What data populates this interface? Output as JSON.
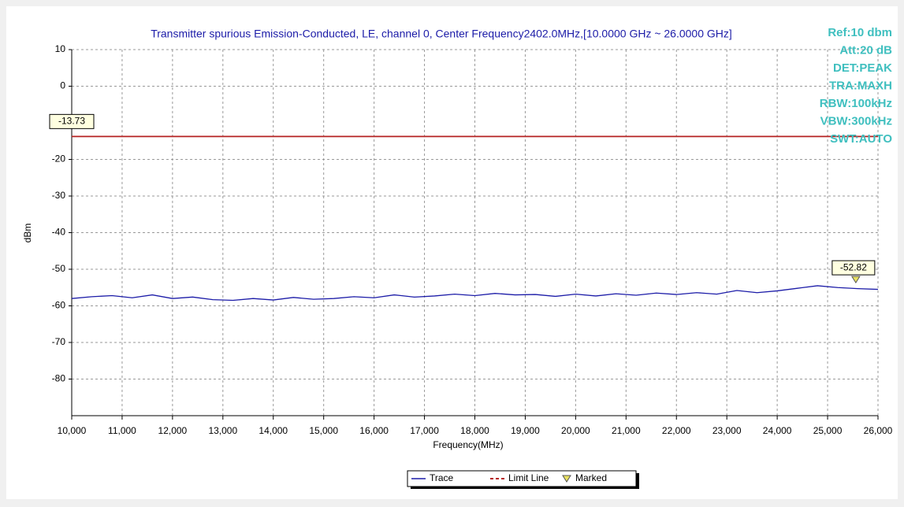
{
  "chart_data": {
    "type": "line",
    "title": "Transmitter spurious Emission-Conducted, LE, channel 0, Center Frequency2402.0MHz,[10.0000 GHz ~ 26.0000 GHz]",
    "xlabel": "Frequency(MHz)",
    "ylabel": "dBm",
    "x": [
      10000,
      10400,
      10800,
      11200,
      11600,
      12000,
      12400,
      12800,
      13200,
      13600,
      14000,
      14400,
      14800,
      15200,
      15600,
      16000,
      16400,
      16800,
      17200,
      17600,
      18000,
      18400,
      18800,
      19200,
      19600,
      20000,
      20400,
      20800,
      21200,
      21600,
      22000,
      22400,
      22800,
      23200,
      23600,
      24000,
      24400,
      24800,
      25200,
      25600,
      26000
    ],
    "series": [
      {
        "name": "Trace",
        "color": "#1c1ca8",
        "values": [
          -58,
          -57.5,
          -57.2,
          -57.8,
          -57,
          -58,
          -57.6,
          -58.3,
          -58.5,
          -58,
          -58.4,
          -57.7,
          -58.2,
          -58,
          -57.5,
          -57.8,
          -57,
          -57.6,
          -57.3,
          -56.8,
          -57.2,
          -56.6,
          -57,
          -56.9,
          -57.4,
          -56.8,
          -57.3,
          -56.7,
          -57.1,
          -56.5,
          -56.9,
          -56.4,
          -56.8,
          -55.8,
          -56.4,
          -55.9,
          -55.2,
          -54.5,
          -55,
          -55.3,
          -55.5
        ]
      }
    ],
    "limit_line": {
      "name": "Limit Line",
      "value": -13.73,
      "color": "#b52222"
    },
    "marker": {
      "name": "Marked",
      "x": 25560,
      "value": -52.82,
      "color": "#e8e060"
    },
    "annotations": [
      "Ref:10 dbm",
      "Att:20 dB",
      "DET:PEAK",
      "TRA:MAXH",
      "RBW:100kHz",
      "VBW:300kHz",
      "SWT:AUTO"
    ],
    "annotation_color": "#3fbfbf",
    "xlim": [
      10000,
      26000
    ],
    "ylim": [
      -90,
      10
    ],
    "xticks": [
      {
        "value": 10000,
        "label": "10,000"
      },
      {
        "value": 11000,
        "label": "11,000"
      },
      {
        "value": 12000,
        "label": "12,000"
      },
      {
        "value": 13000,
        "label": "13,000"
      },
      {
        "value": 14000,
        "label": "14,000"
      },
      {
        "value": 15000,
        "label": "15,000"
      },
      {
        "value": 16000,
        "label": "16,000"
      },
      {
        "value": 17000,
        "label": "17,000"
      },
      {
        "value": 18000,
        "label": "18,000"
      },
      {
        "value": 19000,
        "label": "19,000"
      },
      {
        "value": 20000,
        "label": "20,000"
      },
      {
        "value": 21000,
        "label": "21,000"
      },
      {
        "value": 22000,
        "label": "22,000"
      },
      {
        "value": 23000,
        "label": "23,000"
      },
      {
        "value": 24000,
        "label": "24,000"
      },
      {
        "value": 25000,
        "label": "25,000"
      },
      {
        "value": 26000,
        "label": "26,000"
      }
    ],
    "yticks": [
      10,
      0,
      -20,
      -30,
      -40,
      -50,
      -60,
      -70,
      -80
    ],
    "grid": true
  }
}
